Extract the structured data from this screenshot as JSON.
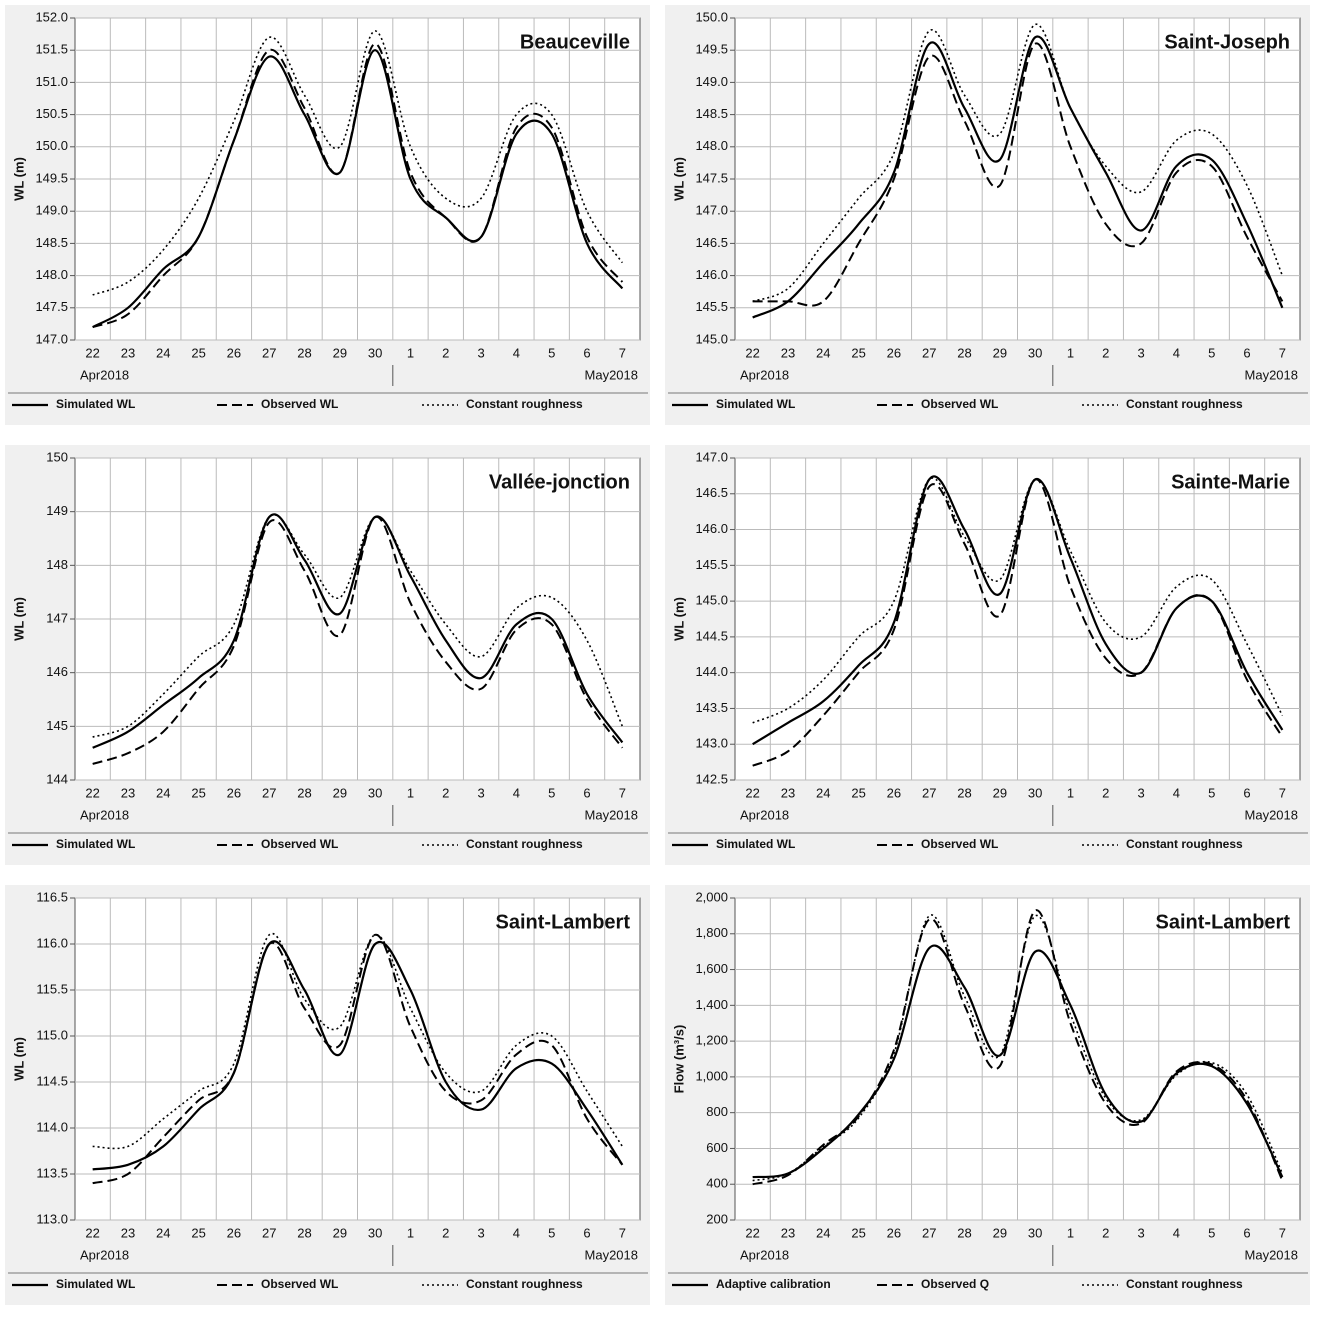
{
  "chart_data": [
    {
      "type": "line",
      "title": "Beauceville",
      "y_label": "WL (m)",
      "categories": [
        "22",
        "23",
        "24",
        "25",
        "26",
        "27",
        "28",
        "29",
        "30",
        "1",
        "2",
        "3",
        "4",
        "5",
        "6",
        "7"
      ],
      "x_sublabels": [
        "Apr2018",
        "May2018"
      ],
      "ylim": [
        147,
        152
      ],
      "yticks": [
        {
          "value": 147,
          "label": "147.0"
        },
        147.5,
        {
          "value": 148,
          "label": "148.0"
        },
        148.5,
        {
          "value": 149,
          "label": "149.0"
        },
        149.5,
        {
          "value": 150,
          "label": "150.0"
        },
        150.5,
        {
          "value": 151,
          "label": "151.0"
        },
        151.5,
        {
          "value": 152,
          "label": "152.0"
        }
      ],
      "grid": true,
      "series": [
        {
          "name": "Simulated WL",
          "color": "#000000",
          "style": "solid",
          "values": [
            147.2,
            147.5,
            148.1,
            148.6,
            150.1,
            151.4,
            150.5,
            149.6,
            151.5,
            149.5,
            148.9,
            148.6,
            150.2,
            150.2,
            148.5,
            147.8
          ]
        },
        {
          "name": "Observed WL",
          "color": "#000000",
          "style": "dashed",
          "values": [
            147.2,
            147.4,
            148.0,
            148.6,
            150.1,
            151.5,
            150.6,
            149.6,
            151.6,
            149.6,
            148.9,
            148.6,
            150.3,
            150.3,
            148.6,
            147.9
          ]
        },
        {
          "name": "Constant roughness",
          "color": "#000000",
          "style": "dotted",
          "values": [
            147.7,
            147.9,
            148.4,
            149.2,
            150.4,
            151.7,
            150.8,
            150.0,
            151.8,
            150.0,
            149.2,
            149.2,
            150.5,
            150.5,
            149.0,
            148.2
          ]
        }
      ]
    },
    {
      "type": "line",
      "title": "Saint-Joseph",
      "y_label": "WL (m)",
      "categories": [
        "22",
        "23",
        "24",
        "25",
        "26",
        "27",
        "28",
        "29",
        "30",
        "1",
        "2",
        "3",
        "4",
        "5",
        "6",
        "7"
      ],
      "x_sublabels": [
        "Apr2018",
        "May2018"
      ],
      "ylim": [
        145,
        150
      ],
      "yticks": [
        {
          "value": 145,
          "label": "145.0"
        },
        145.5,
        {
          "value": 146,
          "label": "146.0"
        },
        146.5,
        {
          "value": 147,
          "label": "147.0"
        },
        147.5,
        {
          "value": 148,
          "label": "148.0"
        },
        148.5,
        {
          "value": 149,
          "label": "149.0"
        },
        149.5,
        {
          "value": 150,
          "label": "150.0"
        }
      ],
      "grid": true,
      "series": [
        {
          "name": "Simulated WL",
          "color": "#000000",
          "style": "solid",
          "values": [
            145.35,
            145.6,
            146.2,
            146.8,
            147.6,
            149.6,
            148.6,
            147.8,
            149.7,
            148.6,
            147.6,
            146.7,
            147.7,
            147.8,
            146.8,
            145.5
          ]
        },
        {
          "name": "Observed WL",
          "color": "#000000",
          "style": "dashed",
          "values": [
            145.6,
            145.6,
            145.6,
            146.5,
            147.5,
            149.4,
            148.4,
            147.4,
            149.6,
            148.0,
            146.8,
            146.5,
            147.6,
            147.7,
            146.6,
            145.6
          ]
        },
        {
          "name": "Constant roughness",
          "color": "#000000",
          "style": "dotted",
          "values": [
            145.6,
            145.8,
            146.5,
            147.2,
            147.9,
            149.8,
            148.8,
            148.2,
            149.9,
            148.6,
            147.7,
            147.3,
            148.1,
            148.2,
            147.4,
            146.0
          ]
        }
      ]
    },
    {
      "type": "line",
      "title": "Vallée-jonction",
      "y_label": "WL (m)",
      "categories": [
        "22",
        "23",
        "24",
        "25",
        "26",
        "27",
        "28",
        "29",
        "30",
        "1",
        "2",
        "3",
        "4",
        "5",
        "6",
        "7"
      ],
      "x_sublabels": [
        "Apr2018",
        "May2018"
      ],
      "ylim": [
        144,
        150
      ],
      "yticks": [
        144,
        145,
        146,
        147,
        148,
        149,
        150
      ],
      "grid": true,
      "series": [
        {
          "name": "Simulated WL",
          "color": "#000000",
          "style": "solid",
          "values": [
            144.6,
            144.9,
            145.4,
            145.9,
            146.6,
            148.9,
            148.1,
            147.1,
            148.9,
            147.8,
            146.6,
            145.9,
            146.9,
            147.0,
            145.6,
            144.7
          ]
        },
        {
          "name": "Observed WL",
          "color": "#000000",
          "style": "dashed",
          "values": [
            144.3,
            144.5,
            144.9,
            145.7,
            146.5,
            148.8,
            147.9,
            146.7,
            148.9,
            147.3,
            146.2,
            145.7,
            146.8,
            146.9,
            145.5,
            144.6
          ]
        },
        {
          "name": "Constant roughness",
          "color": "#000000",
          "style": "dotted",
          "values": [
            144.8,
            145.0,
            145.6,
            146.3,
            146.9,
            148.9,
            148.2,
            147.4,
            148.9,
            147.9,
            146.9,
            146.3,
            147.2,
            147.4,
            146.6,
            145.0
          ]
        }
      ]
    },
    {
      "type": "line",
      "title": "Sainte-Marie",
      "y_label": "WL (m)",
      "categories": [
        "22",
        "23",
        "24",
        "25",
        "26",
        "27",
        "28",
        "29",
        "30",
        "1",
        "2",
        "3",
        "4",
        "5",
        "6",
        "7"
      ],
      "x_sublabels": [
        "Apr2018",
        "May2018"
      ],
      "ylim": [
        142.5,
        147
      ],
      "yticks": [
        142.5,
        {
          "value": 143,
          "label": "143.0"
        },
        143.5,
        {
          "value": 144,
          "label": "144.0"
        },
        144.5,
        {
          "value": 145,
          "label": "145.0"
        },
        145.5,
        {
          "value": 146,
          "label": "146.0"
        },
        146.5,
        {
          "value": 147,
          "label": "147.0"
        }
      ],
      "grid": true,
      "series": [
        {
          "name": "Simulated WL",
          "color": "#000000",
          "style": "solid",
          "values": [
            143.0,
            143.3,
            143.6,
            144.1,
            144.7,
            146.7,
            146.0,
            145.1,
            146.7,
            145.6,
            144.4,
            144.0,
            144.9,
            145.0,
            144.0,
            143.2
          ]
        },
        {
          "name": "Observed WL",
          "color": "#000000",
          "style": "dashed",
          "values": [
            142.7,
            142.9,
            143.4,
            144.0,
            144.6,
            146.6,
            145.8,
            144.8,
            146.7,
            145.2,
            144.2,
            144.0,
            144.9,
            145.0,
            143.9,
            143.1
          ]
        },
        {
          "name": "Constant roughness",
          "color": "#000000",
          "style": "dotted",
          "values": [
            143.3,
            143.5,
            143.9,
            144.5,
            145.0,
            146.7,
            145.9,
            145.3,
            146.7,
            145.7,
            144.7,
            144.5,
            145.2,
            145.3,
            144.4,
            143.4
          ]
        }
      ]
    },
    {
      "type": "line",
      "title": "Saint-Lambert",
      "y_label": "WL (m)",
      "categories": [
        "22",
        "23",
        "24",
        "25",
        "26",
        "27",
        "28",
        "29",
        "30",
        "1",
        "2",
        "3",
        "4",
        "5",
        "6",
        "7"
      ],
      "x_sublabels": [
        "Apr2018",
        "May2018"
      ],
      "ylim": [
        113,
        116.5
      ],
      "yticks": [
        {
          "value": 113,
          "label": "113.0"
        },
        113.5,
        {
          "value": 114,
          "label": "114.0"
        },
        114.5,
        {
          "value": 115,
          "label": "115.0"
        },
        115.5,
        {
          "value": 116,
          "label": "116.0"
        },
        116.5
      ],
      "grid": true,
      "series": [
        {
          "name": "Simulated WL",
          "color": "#000000",
          "style": "solid",
          "values": [
            113.55,
            113.6,
            113.8,
            114.2,
            114.6,
            116.0,
            115.5,
            114.8,
            116.0,
            115.5,
            114.5,
            114.2,
            114.65,
            114.7,
            114.2,
            113.6
          ]
        },
        {
          "name": "Observed WL",
          "color": "#000000",
          "style": "dashed",
          "values": [
            113.4,
            113.5,
            113.9,
            114.3,
            114.6,
            116.0,
            115.3,
            114.9,
            116.1,
            115.1,
            114.4,
            114.3,
            114.8,
            114.9,
            114.1,
            113.6
          ]
        },
        {
          "name": "Constant roughness",
          "color": "#000000",
          "style": "dotted",
          "values": [
            113.8,
            113.8,
            114.1,
            114.4,
            114.7,
            116.1,
            115.4,
            115.1,
            116.1,
            115.3,
            114.6,
            114.4,
            114.9,
            115.0,
            114.4,
            113.8
          ]
        }
      ]
    },
    {
      "type": "line",
      "title": "Saint-Lambert",
      "y_label": "Flow (m³/s)",
      "categories": [
        "22",
        "23",
        "24",
        "25",
        "26",
        "27",
        "28",
        "29",
        "30",
        "1",
        "2",
        "3",
        "4",
        "5",
        "6",
        "7"
      ],
      "x_sublabels": [
        "Apr2018",
        "May2018"
      ],
      "ylim": [
        200,
        2000
      ],
      "yticks": [
        200,
        400,
        600,
        800,
        {
          "value": 1000,
          "label": "1,000"
        },
        {
          "value": 1200,
          "label": "1,200"
        },
        {
          "value": 1400,
          "label": "1,400"
        },
        {
          "value": 1600,
          "label": "1,600"
        },
        {
          "value": 1800,
          "label": "1,800"
        },
        {
          "value": 2000,
          "label": "2,000"
        }
      ],
      "grid": true,
      "series": [
        {
          "name": "Adaptive calibration",
          "color": "#000000",
          "style": "solid",
          "values": [
            440,
            460,
            600,
            790,
            1100,
            1720,
            1500,
            1120,
            1700,
            1400,
            900,
            750,
            1020,
            1060,
            850,
            440
          ]
        },
        {
          "name": "Observed Q",
          "color": "#000000",
          "style": "dashed",
          "values": [
            400,
            450,
            620,
            780,
            1150,
            1880,
            1400,
            1060,
            1930,
            1300,
            850,
            740,
            1030,
            1070,
            870,
            420
          ]
        },
        {
          "name": "Constant roughness",
          "color": "#000000",
          "style": "dotted",
          "values": [
            420,
            460,
            610,
            770,
            1130,
            1900,
            1450,
            1120,
            1900,
            1350,
            880,
            760,
            1010,
            1080,
            900,
            460
          ]
        }
      ]
    }
  ]
}
